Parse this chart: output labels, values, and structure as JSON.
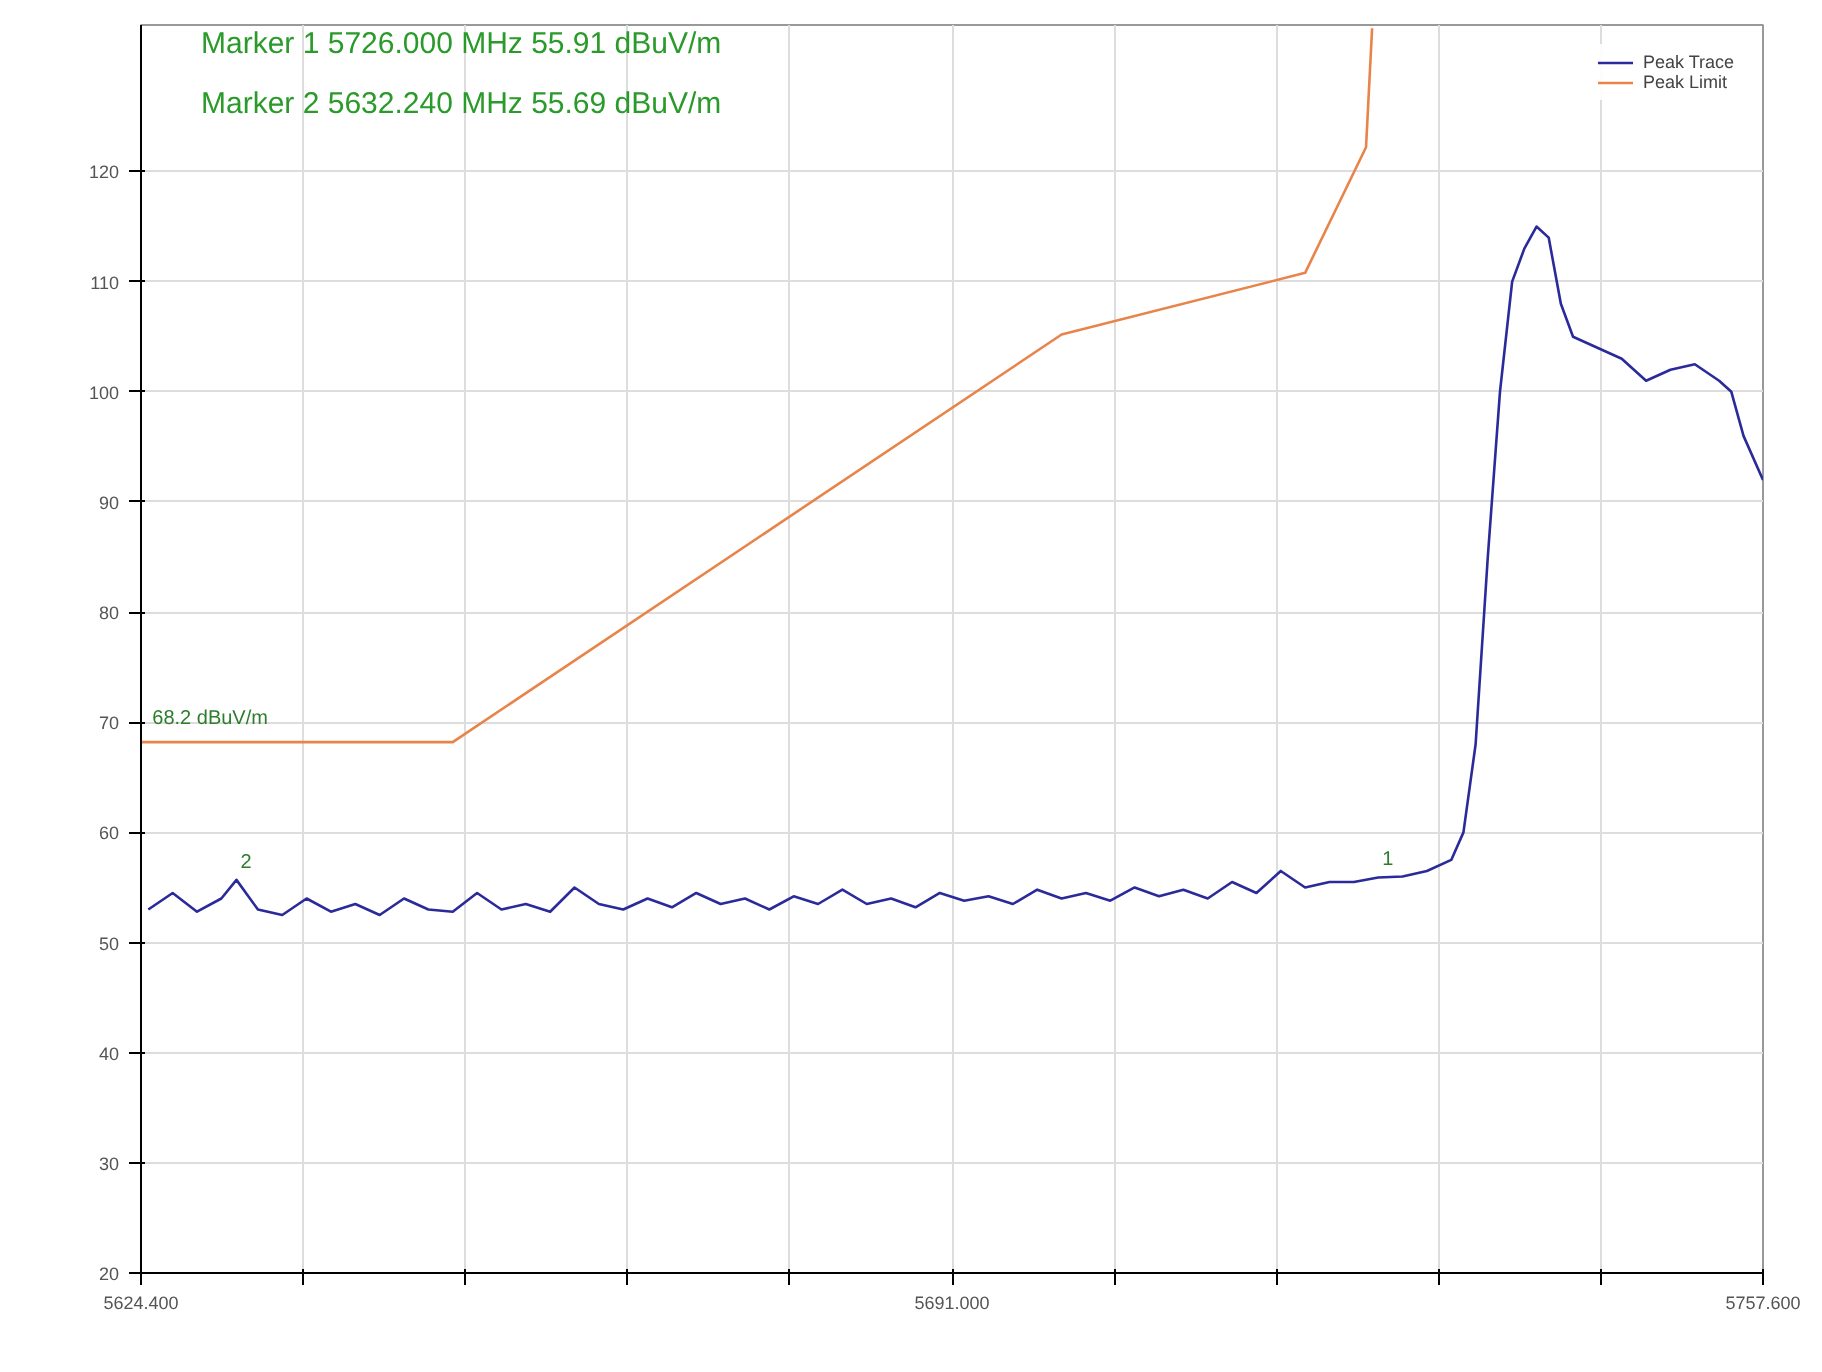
{
  "chart_data": {
    "type": "line",
    "xlim": [
      5624.4,
      5757.6
    ],
    "ylim": [
      20,
      133.3
    ],
    "xticks": [
      {
        "value": 5624.4,
        "label": "5624.400"
      },
      {
        "value": 5637.72,
        "label": null
      },
      {
        "value": 5651.04,
        "label": null
      },
      {
        "value": 5664.36,
        "label": null
      },
      {
        "value": 5677.68,
        "label": null
      },
      {
        "value": 5691.0,
        "label": "5691.000"
      },
      {
        "value": 5704.32,
        "label": null
      },
      {
        "value": 5717.64,
        "label": null
      },
      {
        "value": 5730.96,
        "label": null
      },
      {
        "value": 5744.28,
        "label": null
      },
      {
        "value": 5757.6,
        "label": "5757.600"
      }
    ],
    "yticks": [
      20,
      30,
      40,
      50,
      60,
      70,
      80,
      90,
      100,
      110,
      120
    ],
    "grid": true,
    "legend": "top right",
    "marker": "none",
    "line_style": "solid",
    "series": [
      {
        "name": "Peak Trace",
        "color": "#2a2a9a",
        "x": [
          5625,
          5627,
          5629,
          5631,
          5632.24,
          5634,
          5636,
          5638,
          5640,
          5642,
          5644,
          5646,
          5648,
          5650,
          5652,
          5654,
          5656,
          5658,
          5660,
          5662,
          5664,
          5666,
          5668,
          5670,
          5672,
          5674,
          5676,
          5678,
          5680,
          5682,
          5684,
          5686,
          5688,
          5690,
          5692,
          5694,
          5696,
          5698,
          5700,
          5702,
          5704,
          5706,
          5708,
          5710,
          5712,
          5714,
          5716,
          5718,
          5720,
          5722,
          5724,
          5726,
          5728,
          5730,
          5732,
          5733,
          5734,
          5735,
          5736,
          5737,
          5738,
          5739,
          5740,
          5741,
          5742,
          5744,
          5746,
          5748,
          5750,
          5752,
          5754,
          5755,
          5756,
          5757.6
        ],
        "values": [
          53,
          54.5,
          52.8,
          54,
          55.69,
          53,
          52.5,
          54,
          52.8,
          53.5,
          52.5,
          54,
          53,
          52.8,
          54.5,
          53,
          53.5,
          52.8,
          55,
          53.5,
          53,
          54,
          53.2,
          54.5,
          53.5,
          54,
          53,
          54.2,
          53.5,
          54.8,
          53.5,
          54,
          53.2,
          54.5,
          53.8,
          54.2,
          53.5,
          54.8,
          54,
          54.5,
          53.8,
          55,
          54.2,
          54.8,
          54,
          55.5,
          54.5,
          56.5,
          55,
          55.5,
          55.5,
          55.91,
          56,
          56.5,
          57.5,
          60,
          68,
          85,
          100,
          110,
          113,
          115,
          114,
          108,
          105,
          104,
          103,
          101,
          102,
          102.5,
          101,
          100,
          96,
          92
        ]
      },
      {
        "name": "Peak Limit",
        "color": "#e8844a",
        "x": [
          5624.4,
          5650,
          5700,
          5720,
          5725,
          5725.5
        ],
        "values": [
          68.2,
          68.2,
          105.2,
          110.8,
          122.2,
          133
        ]
      }
    ],
    "annotations": [
      "Marker 1 5726.000 MHz 55.91 dBuV/m",
      "Marker 2 5632.240 MHz 55.69 dBuV/m",
      {
        "text": "1",
        "x": 5726,
        "y": 55.91
      },
      {
        "text": "2",
        "x": 5632.24,
        "y": 55.69
      },
      {
        "text": "68.2 dBuV/m",
        "x": 5625,
        "y": 68.2
      }
    ]
  }
}
